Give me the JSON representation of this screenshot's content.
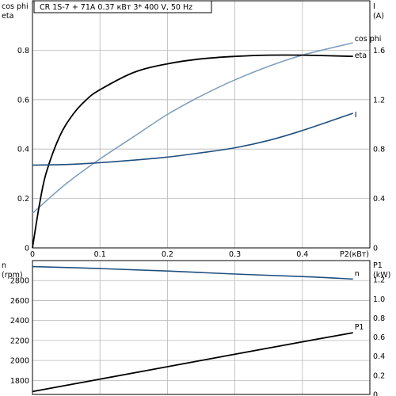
{
  "title": "CR 1S-7 + 71A    0.37 кВт   3* 400 V, 50 Hz",
  "chart_data": [
    {
      "type": "line",
      "axes": {
        "x": {
          "label": "P2(кВт)",
          "range": [
            0,
            0.5
          ],
          "ticks": [
            "0",
            "0.1",
            "0.2",
            "0.3",
            "0.4"
          ],
          "tick_values": [
            0,
            0.1,
            0.2,
            0.3,
            0.4
          ]
        },
        "y_left": {
          "label_top": "cos phi",
          "label_bottom": "eta",
          "range": [
            0,
            1.0
          ],
          "ticks": [
            "0",
            "0.2",
            "0.4",
            "0.6",
            "0.8"
          ],
          "tick_values": [
            0,
            0.2,
            0.4,
            0.6,
            0.8
          ]
        },
        "y_right": {
          "label_top": "I",
          "label_bottom": "(A)",
          "range": [
            0,
            2.0
          ],
          "ticks": [
            "0",
            "0.4",
            "0.8",
            "1.2",
            "1.6"
          ],
          "tick_values": [
            0,
            0.4,
            0.8,
            1.2,
            1.6
          ]
        }
      },
      "grid": true,
      "series": [
        {
          "name": "cos phi",
          "axis": "left",
          "color": "#7f9fbf",
          "x": [
            0,
            0.05,
            0.1,
            0.15,
            0.2,
            0.25,
            0.3,
            0.35,
            0.4,
            0.475
          ],
          "y": [
            0.14,
            0.26,
            0.36,
            0.45,
            0.54,
            0.615,
            0.68,
            0.735,
            0.78,
            0.83
          ]
        },
        {
          "name": "eta",
          "axis": "left",
          "color": "#000000",
          "x": [
            0,
            0.01,
            0.02,
            0.04,
            0.06,
            0.08,
            0.1,
            0.15,
            0.2,
            0.25,
            0.3,
            0.35,
            0.4,
            0.475
          ],
          "y": [
            0,
            0.17,
            0.3,
            0.45,
            0.54,
            0.6,
            0.64,
            0.71,
            0.745,
            0.765,
            0.775,
            0.78,
            0.78,
            0.775
          ]
        },
        {
          "name": "I",
          "axis": "right",
          "color": "#1f4f7f",
          "x": [
            0,
            0.05,
            0.1,
            0.15,
            0.2,
            0.25,
            0.3,
            0.35,
            0.4,
            0.475
          ],
          "y": [
            0.67,
            0.675,
            0.69,
            0.71,
            0.735,
            0.77,
            0.81,
            0.87,
            0.95,
            1.09
          ]
        }
      ]
    },
    {
      "type": "line",
      "axes": {
        "x": {
          "range": [
            0,
            0.5
          ]
        },
        "y_left": {
          "label_top": "n",
          "label_bottom": "(rpm)",
          "range": [
            1660,
            3000
          ],
          "ticks": [
            "1800",
            "2000",
            "2200",
            "2400",
            "2600",
            "2800"
          ],
          "tick_values": [
            1800,
            2000,
            2200,
            2400,
            2600,
            2800
          ]
        },
        "y_right": {
          "label_top": "P1",
          "label_bottom": "(kW)",
          "range": [
            0,
            1.4
          ],
          "ticks": [
            "0",
            "0.2",
            "0.4",
            "0.6",
            "0.8",
            "1.0",
            "1.2"
          ],
          "tick_values": [
            0,
            0.2,
            0.4,
            0.6,
            0.8,
            1.0,
            1.2
          ]
        }
      },
      "grid": true,
      "series": [
        {
          "name": "n",
          "axis": "left",
          "color": "#1f4f7f",
          "x": [
            0,
            0.1,
            0.2,
            0.3,
            0.4,
            0.475
          ],
          "y": [
            2940,
            2920,
            2895,
            2865,
            2840,
            2815
          ]
        },
        {
          "name": "P1",
          "axis": "right",
          "color": "#000000",
          "x": [
            0,
            0.1,
            0.2,
            0.3,
            0.4,
            0.475
          ],
          "y": [
            0.03,
            0.16,
            0.29,
            0.42,
            0.55,
            0.645
          ]
        }
      ]
    }
  ]
}
